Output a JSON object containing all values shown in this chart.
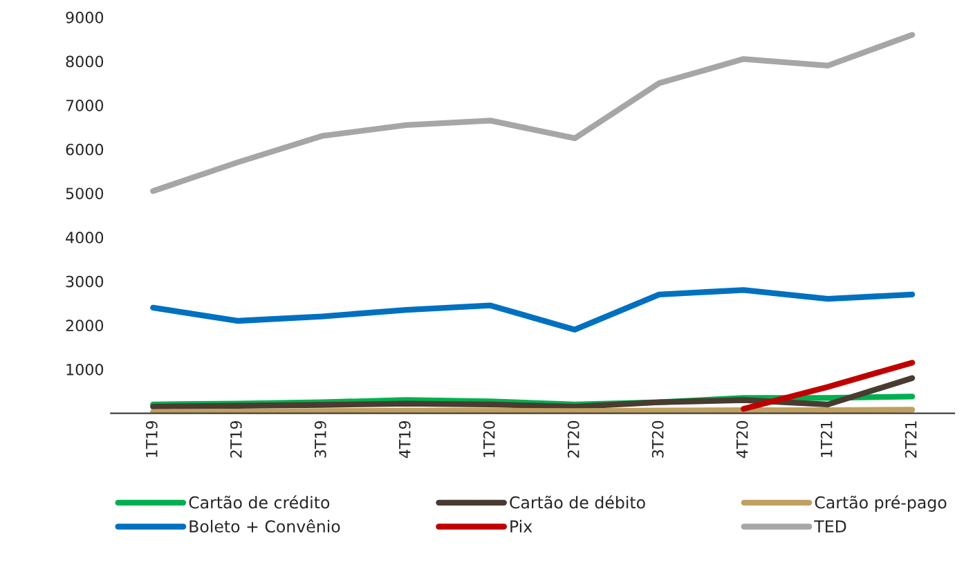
{
  "chart_data": {
    "type": "line",
    "categories": [
      "1T19",
      "2T19",
      "3T19",
      "4T19",
      "1T20",
      "2T20",
      "3T20",
      "4T20",
      "1T21",
      "2T21"
    ],
    "ylim": [
      0,
      9000
    ],
    "yticks": [
      1000,
      2000,
      3000,
      4000,
      5000,
      6000,
      7000,
      8000,
      9000
    ],
    "grid": false,
    "legend": "bottom",
    "marker": "none",
    "line_style": "solid",
    "series": [
      {
        "name": "Cartão de crédito",
        "color": "#00b050",
        "values": [
          200,
          220,
          250,
          300,
          270,
          200,
          250,
          350,
          350,
          380
        ]
      },
      {
        "name": "Cartão de débito",
        "color": "#4a3b30",
        "values": [
          150,
          170,
          190,
          220,
          200,
          150,
          250,
          300,
          200,
          800
        ]
      },
      {
        "name": "Cartão pré-pago",
        "color": "#c0a060",
        "values": [
          30,
          40,
          50,
          60,
          60,
          50,
          60,
          70,
          70,
          80
        ]
      },
      {
        "name": "Boleto + Convênio",
        "color": "#0070c0",
        "values": [
          2400,
          2100,
          2200,
          2350,
          2450,
          1900,
          2700,
          2800,
          2600,
          2700
        ]
      },
      {
        "name": "Pix",
        "color": "#c00000",
        "values": [
          null,
          null,
          null,
          null,
          null,
          null,
          null,
          100,
          600,
          1150
        ]
      },
      {
        "name": "TED",
        "color": "#a6a6a6",
        "values": [
          5050,
          5700,
          6300,
          6550,
          6650,
          6250,
          7500,
          8050,
          7900,
          8600
        ]
      }
    ]
  }
}
